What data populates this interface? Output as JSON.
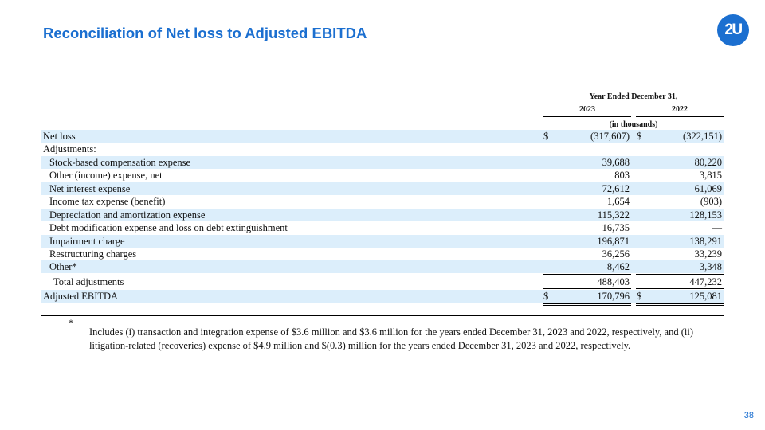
{
  "slide": {
    "title": "Reconciliation of Net loss to Adjusted EBITDA",
    "logo_text": "2U",
    "page_number": "38",
    "accent_color": "#1b6fd0",
    "shade_color": "#dceefb"
  },
  "table": {
    "period_header": "Year Ended December 31,",
    "years": [
      "2023",
      "2022"
    ],
    "units": "(in thousands)",
    "rows": [
      {
        "label": "Net loss",
        "cur1": "$",
        "v2023": "(317,607)",
        "cur2": "$",
        "v2022": "(322,151)"
      },
      {
        "label": "Adjustments:",
        "cur1": "",
        "v2023": "",
        "cur2": "",
        "v2022": ""
      },
      {
        "label": "Stock-based compensation expense",
        "cur1": "",
        "v2023": "39,688",
        "cur2": "",
        "v2022": "80,220"
      },
      {
        "label": "Other (income) expense, net",
        "cur1": "",
        "v2023": "803",
        "cur2": "",
        "v2022": "3,815"
      },
      {
        "label": "Net interest expense",
        "cur1": "",
        "v2023": "72,612",
        "cur2": "",
        "v2022": "61,069"
      },
      {
        "label": "Income tax expense (benefit)",
        "cur1": "",
        "v2023": "1,654",
        "cur2": "",
        "v2022": "(903)"
      },
      {
        "label": "Depreciation and amortization expense",
        "cur1": "",
        "v2023": "115,322",
        "cur2": "",
        "v2022": "128,153"
      },
      {
        "label": "Debt modification expense and loss on debt extinguishment",
        "cur1": "",
        "v2023": "16,735",
        "cur2": "",
        "v2022": "—"
      },
      {
        "label": "Impairment charge",
        "cur1": "",
        "v2023": "196,871",
        "cur2": "",
        "v2022": "138,291"
      },
      {
        "label": "Restructuring charges",
        "cur1": "",
        "v2023": "36,256",
        "cur2": "",
        "v2022": "33,239"
      },
      {
        "label": "Other*",
        "cur1": "",
        "v2023": "8,462",
        "cur2": "",
        "v2022": "3,348"
      },
      {
        "label": "Total adjustments",
        "cur1": "",
        "v2023": "488,403",
        "cur2": "",
        "v2022": "447,232"
      },
      {
        "label": "Adjusted EBITDA",
        "cur1": "$",
        "v2023": "170,796",
        "cur2": "$",
        "v2022": "125,081"
      }
    ]
  },
  "footnote": {
    "marker": "*",
    "text": "Includes (i) transaction and integration expense of $3.6 million and $3.6 million for the years ended December 31, 2023 and 2022, respectively, and (ii) litigation-related (recoveries) expense of $4.9 million and $(0.3) million for the years ended December 31, 2023 and 2022, respectively."
  }
}
